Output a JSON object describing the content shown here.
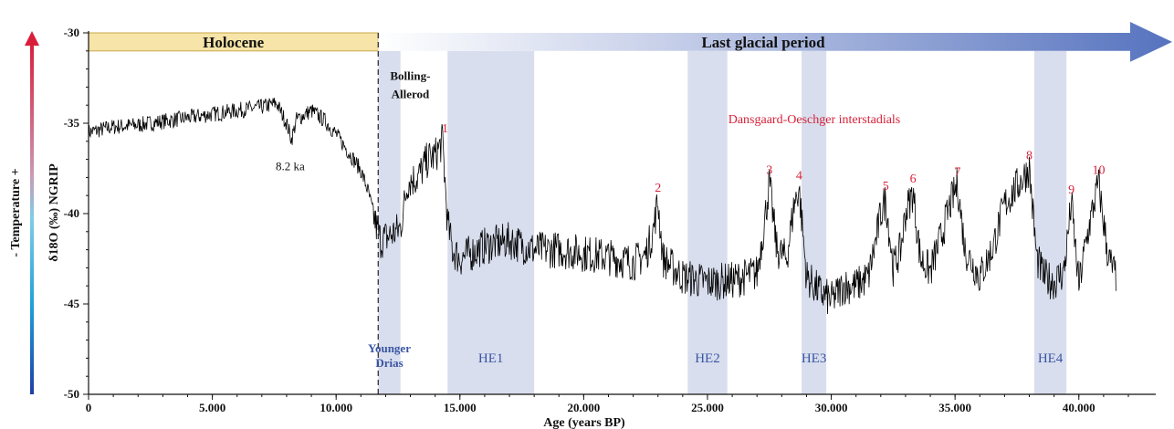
{
  "chart_data": {
    "type": "line",
    "xlabel": "Age (years BP)",
    "ylabel": "δ18O (‰) NGRIP",
    "side_label": "- Temperature +",
    "xlim": [
      0,
      42000
    ],
    "ylim": [
      -50,
      -30
    ],
    "x_ticks": [
      {
        "value": 0,
        "label": "0"
      },
      {
        "value": 5000,
        "label": "5.000"
      },
      {
        "value": 10000,
        "label": "10.000"
      },
      {
        "value": 15000,
        "label": "15.000"
      },
      {
        "value": 20000,
        "label": "20.000"
      },
      {
        "value": 25000,
        "label": "25.000"
      },
      {
        "value": 30000,
        "label": "30.000"
      },
      {
        "value": 35000,
        "label": "35.000"
      },
      {
        "value": 40000,
        "label": "40.000"
      }
    ],
    "y_ticks": [
      {
        "value": -30,
        "label": "-30"
      },
      {
        "value": -35,
        "label": "-35"
      },
      {
        "value": -40,
        "label": "-40"
      },
      {
        "value": -45,
        "label": "-45"
      },
      {
        "value": -50,
        "label": "-50"
      }
    ],
    "periods": [
      {
        "label": "Holocene",
        "x0": 0,
        "x1": 11700,
        "color": "#f6e4a8"
      },
      {
        "label": "Last glacial period",
        "x0": 11700,
        "x1": 42000,
        "color": "#5b79c2"
      }
    ],
    "boundary_x": 11700,
    "cold_events": [
      {
        "label": "Younger Drias",
        "x0": 11700,
        "x1": 12600
      },
      {
        "label": "HE1",
        "x0": 14500,
        "x1": 18000
      },
      {
        "label": "HE2",
        "x0": 24200,
        "x1": 25800
      },
      {
        "label": "HE3",
        "x0": 28800,
        "x1": 29800
      },
      {
        "label": "HE4",
        "x0": 38200,
        "x1": 39500
      }
    ],
    "annotations": {
      "event_82ka": "8.2 ka",
      "bolling_allerod": [
        "Bolling-",
        "Allerod"
      ],
      "do_title": "Dansgaard-Oeschger interstadials"
    },
    "interstadials": [
      {
        "label": "1",
        "x": 14400,
        "y": -36.0
      },
      {
        "label": "2",
        "x": 23000,
        "y": -39.3
      },
      {
        "label": "3",
        "x": 27500,
        "y": -38.3
      },
      {
        "label": "4",
        "x": 28700,
        "y": -38.6
      },
      {
        "label": "5",
        "x": 32200,
        "y": -39.2
      },
      {
        "label": "6",
        "x": 33300,
        "y": -38.8
      },
      {
        "label": "7",
        "x": 35100,
        "y": -38.4
      },
      {
        "label": "8",
        "x": 38000,
        "y": -37.5
      },
      {
        "label": "9",
        "x": 39700,
        "y": -39.4
      },
      {
        "label": "10",
        "x": 40800,
        "y": -38.3
      }
    ],
    "series": [
      {
        "color": "#000000",
        "x": [
          0,
          1000,
          2000,
          3000,
          4000,
          5000,
          6000,
          7000,
          7600,
          8000,
          8200,
          8400,
          9000,
          9500,
          10000,
          10500,
          11000,
          11300,
          11600,
          11800,
          12200,
          12600,
          12900,
          13300,
          13700,
          14000,
          14300,
          14500,
          14700,
          15000,
          16000,
          17000,
          18000,
          19000,
          20000,
          21000,
          22000,
          22500,
          22800,
          23000,
          23200,
          24000,
          25000,
          26000,
          27000,
          27300,
          27500,
          27800,
          28200,
          28500,
          28700,
          29000,
          29500,
          30000,
          30500,
          31000,
          31500,
          31800,
          32000,
          32200,
          32500,
          32800,
          33000,
          33300,
          33600,
          34000,
          34500,
          34800,
          35100,
          35400,
          36000,
          36500,
          37000,
          37500,
          38000,
          38300,
          38600,
          39000,
          39400,
          39700,
          40000,
          40300,
          40600,
          40800,
          41000,
          41200,
          41500
        ],
        "y": [
          -35.5,
          -35.2,
          -35.1,
          -34.9,
          -34.7,
          -34.5,
          -34.3,
          -34.1,
          -33.9,
          -35.0,
          -35.9,
          -34.8,
          -34.3,
          -34.8,
          -35.6,
          -36.6,
          -37.6,
          -38.8,
          -40.6,
          -41.5,
          -41.2,
          -40.8,
          -38.2,
          -38.0,
          -37.0,
          -36.8,
          -36.0,
          -40.5,
          -42.0,
          -42.5,
          -41.8,
          -41.5,
          -42.0,
          -42.0,
          -42.2,
          -42.4,
          -42.7,
          -42.3,
          -41.0,
          -39.3,
          -42.5,
          -43.5,
          -43.8,
          -43.7,
          -43.3,
          -40.5,
          -38.3,
          -42.0,
          -42.5,
          -39.5,
          -38.6,
          -43.5,
          -44.3,
          -44.8,
          -44.0,
          -44.0,
          -43.5,
          -41.5,
          -40.0,
          -39.2,
          -43.0,
          -42.0,
          -40.0,
          -38.8,
          -42.5,
          -43.2,
          -41.0,
          -39.5,
          -38.4,
          -42.0,
          -43.5,
          -42.0,
          -39.5,
          -38.5,
          -37.5,
          -42.5,
          -43.5,
          -43.8,
          -43.2,
          -39.4,
          -44.0,
          -41.5,
          -39.5,
          -38.3,
          -40.5,
          -42.5,
          -43.5
        ]
      }
    ]
  }
}
